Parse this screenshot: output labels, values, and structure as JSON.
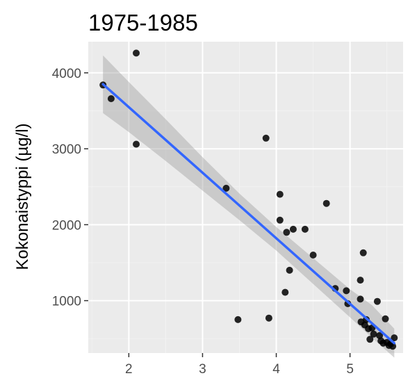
{
  "chart_data": {
    "type": "scatter",
    "title": "1975-1985",
    "xlabel": "",
    "ylabel": "Kokonaistyppi (µg/l)",
    "xlim": [
      1.45,
      5.72
    ],
    "ylim": [
      310,
      4410
    ],
    "x_ticks": [
      2,
      3,
      4,
      5
    ],
    "x_tick_labels": [
      "2",
      "3",
      "4",
      "5"
    ],
    "x_minor_ticks": [
      1.5,
      2.5,
      3.5,
      4.5,
      5.5
    ],
    "y_ticks": [
      1000,
      2000,
      3000,
      4000
    ],
    "y_tick_labels": [
      "1000",
      "2000",
      "3000",
      "4000"
    ],
    "y_minor_ticks": [
      500,
      1500,
      2500,
      3500
    ],
    "grid": true,
    "legend": "none",
    "points": [
      {
        "x": 1.65,
        "y": 3840
      },
      {
        "x": 1.76,
        "y": 3660
      },
      {
        "x": 2.1,
        "y": 4260
      },
      {
        "x": 2.1,
        "y": 3060
      },
      {
        "x": 3.32,
        "y": 2480
      },
      {
        "x": 3.48,
        "y": 750
      },
      {
        "x": 3.86,
        "y": 3140
      },
      {
        "x": 3.9,
        "y": 770
      },
      {
        "x": 4.05,
        "y": 2400
      },
      {
        "x": 4.05,
        "y": 2060
      },
      {
        "x": 4.12,
        "y": 1110
      },
      {
        "x": 4.14,
        "y": 1900
      },
      {
        "x": 4.18,
        "y": 1400
      },
      {
        "x": 4.23,
        "y": 1940
      },
      {
        "x": 4.39,
        "y": 1940
      },
      {
        "x": 4.5,
        "y": 1600
      },
      {
        "x": 4.68,
        "y": 2280
      },
      {
        "x": 4.8,
        "y": 1160
      },
      {
        "x": 4.95,
        "y": 1130
      },
      {
        "x": 4.97,
        "y": 960
      },
      {
        "x": 5.14,
        "y": 1270
      },
      {
        "x": 5.14,
        "y": 1020
      },
      {
        "x": 5.15,
        "y": 720
      },
      {
        "x": 5.18,
        "y": 1630
      },
      {
        "x": 5.2,
        "y": 680
      },
      {
        "x": 5.22,
        "y": 750
      },
      {
        "x": 5.25,
        "y": 630
      },
      {
        "x": 5.27,
        "y": 490
      },
      {
        "x": 5.3,
        "y": 640
      },
      {
        "x": 5.32,
        "y": 560
      },
      {
        "x": 5.37,
        "y": 990
      },
      {
        "x": 5.4,
        "y": 540
      },
      {
        "x": 5.42,
        "y": 470
      },
      {
        "x": 5.45,
        "y": 440
      },
      {
        "x": 5.48,
        "y": 760
      },
      {
        "x": 5.5,
        "y": 450
      },
      {
        "x": 5.53,
        "y": 410
      },
      {
        "x": 5.55,
        "y": 430
      },
      {
        "x": 5.58,
        "y": 400
      },
      {
        "x": 5.6,
        "y": 510
      }
    ],
    "fit_line": {
      "x": [
        1.65,
        5.6
      ],
      "y": [
        3850,
        440
      ]
    },
    "confidence_band": {
      "x": [
        1.65,
        2.0,
        2.5,
        3.0,
        3.5,
        4.0,
        4.5,
        5.0,
        5.3,
        5.6
      ],
      "lower": [
        3470,
        3220,
        2840,
        2450,
        2060,
        1660,
        1220,
        780,
        510,
        250
      ],
      "upper": [
        4230,
        3880,
        3390,
        2890,
        2410,
        1970,
        1560,
        1150,
        940,
        630
      ]
    },
    "colors": {
      "panel_background": "#ebebeb",
      "grid_major": "#ffffff",
      "grid_minor": "#f2f2f2",
      "points": "#000000",
      "fit_line": "#3366ff",
      "band": "#999999",
      "tick_label": "#4d4d4d",
      "tick_mark": "#333333"
    }
  }
}
